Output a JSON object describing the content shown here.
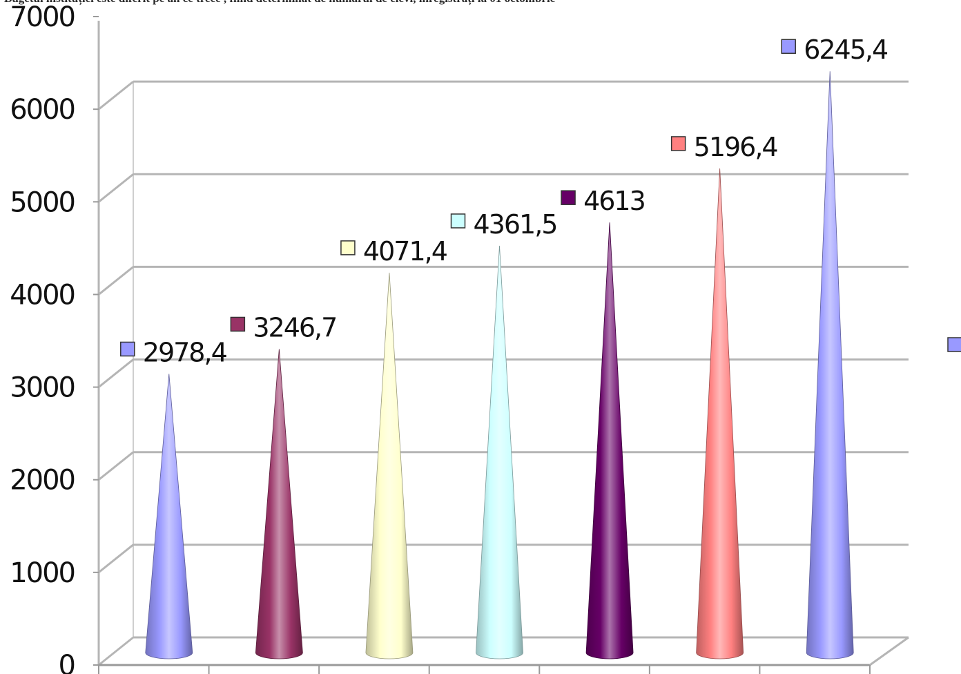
{
  "header_text": "Bugetul instituției este diferit pe an ce trece , fiind determinat de numărul de elevi, înregistrați la 01 octombrie",
  "chart_data": {
    "type": "bar",
    "shape": "cone-3d",
    "title": "",
    "xlabel": "",
    "ylabel": "",
    "ylim": [
      0,
      7000
    ],
    "y_ticks": [
      "0",
      "1000",
      "2000",
      "3000",
      "4000",
      "5000",
      "6000",
      "7000"
    ],
    "grid": true,
    "legend": "right (partially cropped)",
    "categories": [
      "",
      "",
      "",
      "",
      "",
      "",
      ""
    ],
    "values": [
      2978.4,
      3246.7,
      4071.4,
      4361.5,
      4613,
      5196.4,
      6245.4
    ],
    "value_labels": [
      "2978,4",
      "3246,7",
      "4071,4",
      "4361,5",
      "4613",
      "5196,4",
      "6245,4"
    ],
    "colors": [
      "#9999ff",
      "#993366",
      "#ffffcc",
      "#ccffff",
      "#660066",
      "#ff8080",
      "#9999ff"
    ]
  }
}
